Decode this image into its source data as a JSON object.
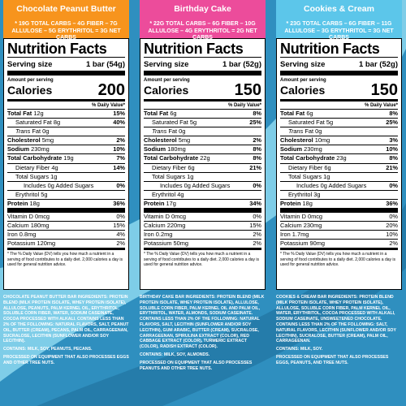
{
  "colors": {
    "background_blue": "#2f8fbf",
    "wave_light": "#7ecde8",
    "orange": "#f7941d",
    "pink": "#ec4c9b",
    "light_blue": "#5cc6ea"
  },
  "columns": [
    {
      "flavor": "Chocolate Peanut Butter",
      "carb_note": "* 19g TOTAL CARBS – 4g FIBER – 7g ALLULOSE – 5g ERYTHRITOL = 3g NET CARBS",
      "title": "Nutrition Facts",
      "serving_label": "Serving size",
      "serving_value": "1 bar (54g)",
      "amount_per_serving": "Amount per serving",
      "calories_label": "Calories",
      "calories_value": "200",
      "dv_header": "% Daily Value*",
      "total_fat_label": "Total Fat",
      "total_fat_amt": "12g",
      "total_fat_dv": "15%",
      "sat_fat": "Saturated Fat 8g",
      "sat_fat_dv": "40%",
      "trans_fat_word": "Trans",
      "trans_fat_rest": " Fat 0g",
      "cholesterol_label": "Cholesterol",
      "cholesterol_amt": "5mg",
      "cholesterol_dv": "2%",
      "sodium_label": "Sodium",
      "sodium_amt": "230mg",
      "sodium_dv": "10%",
      "carb_label": "Total Carbohydrate",
      "carb_amt": "19g",
      "carb_dv": "7%",
      "fiber": "Dietary Fiber 4g",
      "fiber_dv": "14%",
      "sugars": "Total Sugars 1g",
      "added_sugars": "Includes 0g Added Sugars",
      "added_sugars_dv": "0%",
      "erythritol": "Erythritol 5g",
      "protein_label": "Protein",
      "protein_amt": "18g",
      "protein_dv": "36%",
      "vit_d": "Vitamin D 0mcg",
      "vit_d_dv": "0%",
      "calcium": "Calcium 180mg",
      "calcium_dv": "15%",
      "iron": "Iron 0.8mg",
      "iron_dv": "4%",
      "potassium": "Potassium 120mg",
      "potassium_dv": "2%",
      "footnote": "* The % Daily Value (DV) tells you how much a nutrient in a serving of food contributes to a daily diet. 2,000 calories a day is used for general nutrition advice.",
      "ingredients": "CHOCOLATE PEANUT BUTTER BAR INGREDIENTS: PROTEIN BLEND (MILK PROTEIN ISOLATE, WHEY PROTEIN ISOLATE), ALLULOSE, PEANUTS, PALM KERNEL OIL, ERYTHRITOL, SOLUBLE CORN FIBER, WATER, SODIUM CASEINATE, COCOA PROCESSED WITH ALKALI. CONTAINS LESS THAN 2% OF THE FOLLOWING: NATURAL FLAVORS, SALT, PEANUT OIL, BUTTER (CREAM), PECANS, PALM OIL, CARRAGEENAN, SUCRALOSE, LECITHIN (SUNFLOWER AND/OR SOY LECITHIN).",
      "contains": "CONTAINS: MILK, SOY, PEANUTS, PECANS.",
      "processed": "PROCESSED ON EQUIPMENT THAT ALSO PROCESSES EGGS AND OTHER TREE NUTS."
    },
    {
      "flavor": "Birthday Cake",
      "carb_note": "* 22g TOTAL CARBS – 6g FIBER – 10g ALLULOSE – 4g ERYTHRITOL = 2g NET CARBS",
      "title": "Nutrition Facts",
      "serving_label": "Serving size",
      "serving_value": "1 bar (52g)",
      "amount_per_serving": "Amount per serving",
      "calories_label": "Calories",
      "calories_value": "150",
      "dv_header": "% Daily Value*",
      "total_fat_label": "Total Fat",
      "total_fat_amt": "6g",
      "total_fat_dv": "8%",
      "sat_fat": "Saturated Fat 5g",
      "sat_fat_dv": "25%",
      "trans_fat_word": "Trans",
      "trans_fat_rest": " Fat 0g",
      "cholesterol_label": "Cholesterol",
      "cholesterol_amt": "5mg",
      "cholesterol_dv": "2%",
      "sodium_label": "Sodium",
      "sodium_amt": "180mg",
      "sodium_dv": "8%",
      "carb_label": "Total Carbohydrate",
      "carb_amt": "22g",
      "carb_dv": "8%",
      "fiber": "Dietary Fiber 6g",
      "fiber_dv": "21%",
      "sugars": "Total Sugars 1g",
      "added_sugars": "Includes 0g Added Sugars",
      "added_sugars_dv": "0%",
      "erythritol": "Erythritol 4g",
      "protein_label": "Protein",
      "protein_amt": "17g",
      "protein_dv": "34%",
      "vit_d": "Vitamin D 0mcg",
      "vit_d_dv": "0%",
      "calcium": "Calcium 220mg",
      "calcium_dv": "15%",
      "iron": "Iron 0.2mg",
      "iron_dv": "2%",
      "potassium": "Potassium 50mg",
      "potassium_dv": "2%",
      "footnote": "* The % Daily Value (DV) tells you how much a nutrient in a serving of food contributes to a daily diet. 2,000 calories a day is used for general nutrition advice.",
      "ingredients": "BIRTHDAY CAKE BAR INGREDIENTS: PROTEIN BLEND (MILK PROTEIN ISOLATE, WHEY PROTEIN ISOLATE), ALLULOSE, SOLUBLE CORN FIBER, PALM KERNEL OIL AND PALM OIL, ERYTHRITOL, WATER, ALMONDS, SODIUM CASEINATE. CONTAINS LESS THAN 2% OF THE FOLLOWING: NATURAL FLAVORS, SALT, LECITHIN (SUNFLOWER AND/OR SOY LECITHIN), GUM ARABIC, BUTTER (CREAM), SUCRALOSE, CARRAGEENAN, SPIRULINA EXTRACT (COLOR), RED CABBAGE EXTRACT (COLOR), TURMERIC EXTRACT (COLOR), RADISH EXTRACT (COLOR).",
      "contains": "CONTAINS: MILK, SOY, ALMONDS.",
      "processed": "PROCESSED ON EQUIPMENT THAT ALSO PROCESSES PEANUTS AND OTHER TREE NUTS."
    },
    {
      "flavor": "Cookies & Cream",
      "carb_note": "* 23g TOTAL CARBS – 6g FIBER – 11g ALLULOSE – 3g ERYTHRITOL = 3g NET CARBS",
      "title": "Nutrition Facts",
      "serving_label": "Serving size",
      "serving_value": "1 bar (52g)",
      "amount_per_serving": "Amount per serving",
      "calories_label": "Calories",
      "calories_value": "150",
      "dv_header": "% Daily Value*",
      "total_fat_label": "Total Fat",
      "total_fat_amt": "6g",
      "total_fat_dv": "8%",
      "sat_fat": "Saturated Fat 5g",
      "sat_fat_dv": "25%",
      "trans_fat_word": "Trans",
      "trans_fat_rest": " Fat 0g",
      "cholesterol_label": "Cholesterol",
      "cholesterol_amt": "10mg",
      "cholesterol_dv": "3%",
      "sodium_label": "Sodium",
      "sodium_amt": "230mg",
      "sodium_dv": "10%",
      "carb_label": "Total Carbohydrate",
      "carb_amt": "23g",
      "carb_dv": "8%",
      "fiber": "Dietary Fiber 6g",
      "fiber_dv": "21%",
      "sugars": "Total Sugars 1g",
      "added_sugars": "Includes 0g Added Sugars",
      "added_sugars_dv": "0%",
      "erythritol": "Erythritol 3g",
      "protein_label": "Protein",
      "protein_amt": "18g",
      "protein_dv": "36%",
      "vit_d": "Vitamin D 0mcg",
      "vit_d_dv": "0%",
      "calcium": "Calcium 230mg",
      "calcium_dv": "20%",
      "iron": "Iron 1.7mg",
      "iron_dv": "10%",
      "potassium": "Potassium 90mg",
      "potassium_dv": "2%",
      "footnote": "* The % Daily Value (DV) tells you how much a nutrient in a serving of food contributes to a daily diet. 2,000 calories a day is used for general nutrition advice.",
      "ingredients": "COOKIES & CREAM BAR INGREDIENTS: PROTEIN BLEND (MILK PROTEIN ISOLATE, WHEY PROTEIN ISOLATE), ALLULOSE, SOLUBLE CORN FIBER, PALM KERNEL OIL, WATER, ERYTHRITOL, COCOA PROCESSED WITH ALKALI, SODIUM CASEINATE, UNSWEETENED CHOCOLATE. CONTAINS LESS THAN 2% OF THE FOLLOWING: SALT, NATURAL FLAVORS, LECITHIN (SUNFLOWER AND/OR SOY LECITHIN), SUCRALOSE, BUTTER (CREAM), PALM OIL, CARRAGEENAN.",
      "contains": "CONTAINS: MILK, SOY.",
      "processed": "PROCESSED ON EQUIPMENT THAT ALSO PROCESSES EGGS, PEANUTS, AND TREE NUTS."
    }
  ]
}
